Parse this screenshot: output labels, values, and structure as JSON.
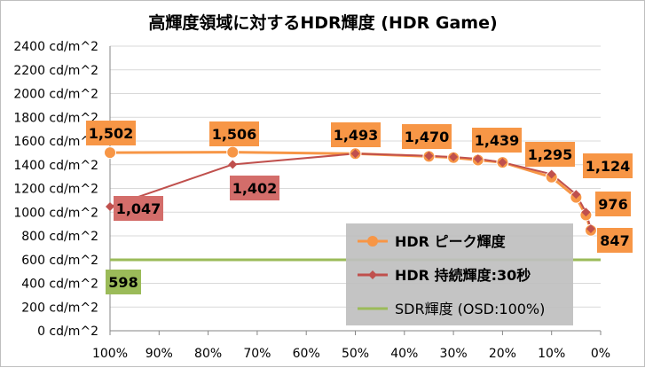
{
  "chart_data": {
    "type": "line",
    "title": "高輝度領域に対するHDR輝度 (HDR Game)",
    "xlabel": "",
    "ylabel": "",
    "ylim": [
      0,
      2400
    ],
    "y_ticks": [
      "0 cd/m^2",
      "200 cd/m^2",
      "400 cd/m^2",
      "600 cd/m^2",
      "800 cd/m^2",
      "1000 cd/m^2",
      "1200 cd/m^2",
      "1400 cd/m^2",
      "1600 cd/m^2",
      "1800 cd/m^2",
      "2000 cd/m^2",
      "2200 cd/m^2",
      "2400 cd/m^2"
    ],
    "x_ticks": [
      "100%",
      "90%",
      "80%",
      "70%",
      "60%",
      "50%",
      "40%",
      "30%",
      "20%",
      "10%",
      "0%"
    ],
    "x_range": [
      100,
      0
    ],
    "grid": "horizontal",
    "legend_position": "bottom-right",
    "series": [
      {
        "name": "HDR ピーク輝度",
        "color": "#f79646",
        "marker": "circle",
        "x": [
          100,
          75,
          50,
          35,
          30,
          25,
          20,
          10,
          5,
          3,
          2
        ],
        "values": [
          1502,
          1506,
          1493,
          1470,
          1460,
          1439,
          1420,
          1295,
          1124,
          976,
          847
        ],
        "labels": [
          "1,502",
          "1,506",
          "1,493",
          "1,470",
          "1,439",
          "1,295",
          "1,124",
          "976",
          "847"
        ]
      },
      {
        "name": "HDR  持続輝度:30秒",
        "color": "#c0504d",
        "marker": "diamond",
        "x": [
          100,
          75,
          50,
          35,
          30,
          25,
          20,
          10,
          5,
          3,
          2
        ],
        "values": [
          1047,
          1402,
          1493,
          1475,
          1465,
          1450,
          1420,
          1320,
          1150,
          1000,
          860
        ],
        "labels": [
          "1,047",
          "1,402"
        ]
      },
      {
        "name": "SDR輝度 (OSD:100%)",
        "color": "#9bbb59",
        "marker": "none",
        "x": [
          100,
          0
        ],
        "values": [
          598,
          598
        ],
        "labels": [
          "598"
        ]
      }
    ]
  }
}
